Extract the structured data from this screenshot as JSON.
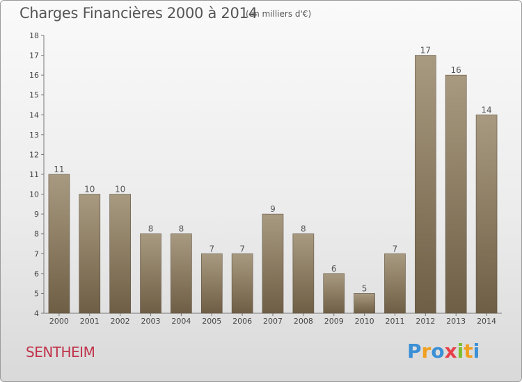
{
  "header": {
    "title": "Charges Financières 2000 à 2014",
    "subtitle": "(en milliers d'€)"
  },
  "footer": {
    "place": "SENTHEIM",
    "logo_text": "Proxiti"
  },
  "logo_letters": [
    {
      "char": "P",
      "color": "#3a8fd6"
    },
    {
      "char": "r",
      "color": "#f0a020"
    },
    {
      "char": "o",
      "color": "#3a8fd6"
    },
    {
      "char": "x",
      "color": "#e8404a"
    },
    {
      "char": "i",
      "color": "#7cbf2e"
    },
    {
      "char": "t",
      "color": "#f0a020"
    },
    {
      "char": "i",
      "color": "#3a8fd6"
    }
  ],
  "colors": {
    "bar_top": "#a89a80",
    "bar_bottom": "#6e5e45",
    "place": "#c0334a"
  },
  "chart_data": {
    "type": "bar",
    "title": "Charges Financières 2000 à 2014",
    "subtitle": "(en milliers d'€)",
    "categories": [
      "2000",
      "2001",
      "2002",
      "2003",
      "2004",
      "2005",
      "2006",
      "2007",
      "2008",
      "2009",
      "2010",
      "2011",
      "2012",
      "2013",
      "2014"
    ],
    "values": [
      11,
      10,
      10,
      8,
      8,
      7,
      7,
      9,
      8,
      6,
      5,
      7,
      17,
      16,
      14
    ],
    "ylim": [
      4,
      18
    ],
    "yticks": [
      4,
      5,
      6,
      7,
      8,
      9,
      10,
      11,
      12,
      13,
      14,
      15,
      16,
      17,
      18
    ],
    "grid": false,
    "data_labels": true
  }
}
